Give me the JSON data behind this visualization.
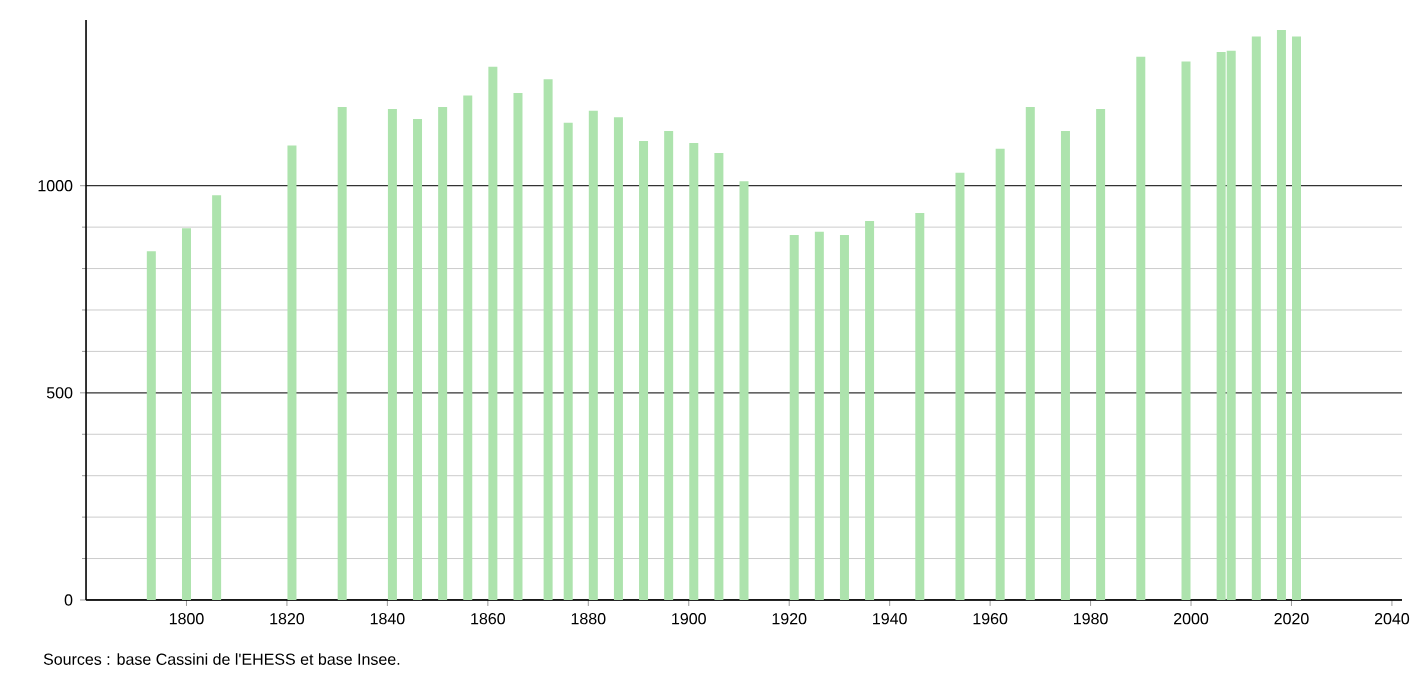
{
  "chart_data": {
    "type": "bar",
    "x": [
      1793,
      1800,
      1806,
      1821,
      1831,
      1841,
      1846,
      1851,
      1856,
      1861,
      1866,
      1872,
      1876,
      1881,
      1886,
      1891,
      1896,
      1901,
      1906,
      1911,
      1921,
      1926,
      1931,
      1936,
      1946,
      1954,
      1962,
      1968,
      1975,
      1982,
      1990,
      1999,
      2006,
      2008,
      2013,
      2018,
      2021
    ],
    "values": [
      842,
      897,
      977,
      1097,
      1190,
      1185,
      1161,
      1190,
      1218,
      1287,
      1224,
      1257,
      1152,
      1181,
      1165,
      1108,
      1132,
      1103,
      1079,
      1011,
      881,
      889,
      881,
      915,
      934,
      1031,
      1089,
      1190,
      1132,
      1185,
      1311,
      1300,
      1323,
      1326,
      1360,
      1376,
      1360
    ],
    "color": "#ade3ad",
    "xlim": [
      1780,
      2042
    ],
    "xticks": [
      1800,
      1820,
      1840,
      1860,
      1880,
      1900,
      1920,
      1940,
      1960,
      1980,
      2000,
      2020,
      2040
    ],
    "ylim": [
      0,
      1400
    ],
    "yticks": [
      0,
      500,
      1000
    ],
    "grid": "y",
    "annotations": [
      "Sources : base Cassini de l'EHESS et base Insee."
    ]
  }
}
